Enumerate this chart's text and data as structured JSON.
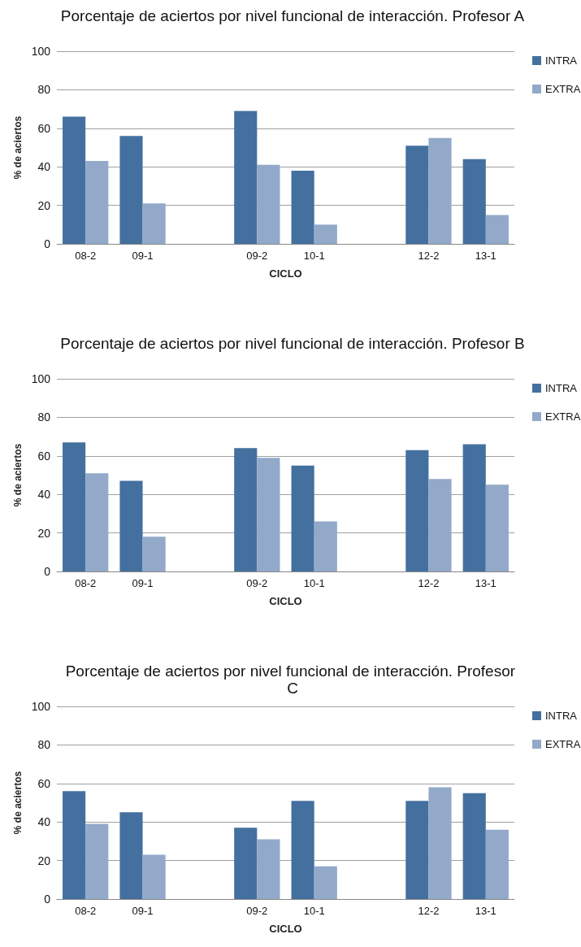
{
  "chart_data": [
    {
      "type": "bar",
      "title": "Porcentaje de aciertos por nivel funcional de interacción. Profesor A",
      "xlabel": "CICLO",
      "ylabel": "% de aciertos",
      "categories": [
        "08-2",
        "09-1",
        null,
        "09-2",
        "10-1",
        null,
        "12-2",
        "13-1"
      ],
      "series": [
        {
          "name": "INTRA",
          "color": "#44709f",
          "values": [
            66,
            56,
            null,
            69,
            38,
            null,
            51,
            44
          ]
        },
        {
          "name": "EXTRA",
          "color": "#92a9c9",
          "values": [
            43,
            21,
            null,
            41,
            10,
            null,
            55,
            15
          ]
        }
      ],
      "ylim": [
        0,
        100
      ],
      "yticks": [
        0,
        20,
        40,
        60,
        80,
        100
      ],
      "grid": "y",
      "legend": "top right"
    },
    {
      "type": "bar",
      "title": "Porcentaje de aciertos por nivel funcional de interacción. Profesor B",
      "xlabel": "CICLO",
      "ylabel": "% de aciertos",
      "categories": [
        "08-2",
        "09-1",
        null,
        "09-2",
        "10-1",
        null,
        "12-2",
        "13-1"
      ],
      "series": [
        {
          "name": "INTRA",
          "color": "#44709f",
          "values": [
            67,
            47,
            null,
            64,
            55,
            null,
            63,
            66
          ]
        },
        {
          "name": "EXTRA",
          "color": "#92a9c9",
          "values": [
            51,
            18,
            null,
            59,
            26,
            null,
            48,
            45
          ]
        }
      ],
      "ylim": [
        0,
        100
      ],
      "yticks": [
        0,
        20,
        40,
        60,
        80,
        100
      ],
      "grid": "y",
      "legend": "top right"
    },
    {
      "type": "bar",
      "title": "Porcentaje de aciertos por nivel funcional de interacción. Profesor C",
      "xlabel": "CICLO",
      "ylabel": "% de aciertos",
      "categories": [
        "08-2",
        "09-1",
        null,
        "09-2",
        "10-1",
        null,
        "12-2",
        "13-1"
      ],
      "series": [
        {
          "name": "INTRA",
          "color": "#44709f",
          "values": [
            56,
            45,
            null,
            37,
            51,
            null,
            51,
            55
          ]
        },
        {
          "name": "EXTRA",
          "color": "#92a9c9",
          "values": [
            39,
            23,
            null,
            31,
            17,
            null,
            58,
            36
          ]
        }
      ],
      "ylim": [
        0,
        100
      ],
      "yticks": [
        0,
        20,
        40,
        60,
        80,
        100
      ],
      "grid": "y",
      "legend": "top right"
    }
  ]
}
